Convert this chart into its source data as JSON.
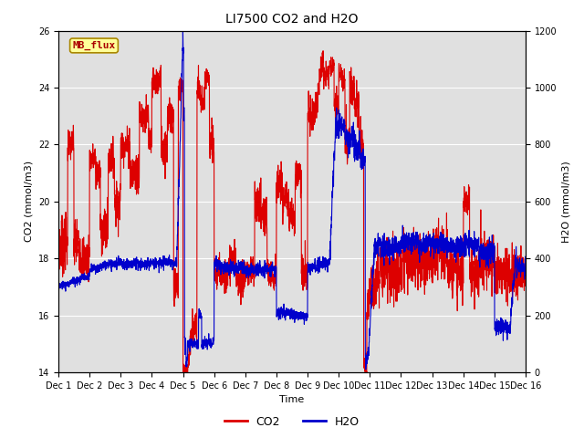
{
  "title": "LI7500 CO2 and H2O",
  "xlabel": "Time",
  "ylabel_left": "CO2 (mmol/m3)",
  "ylabel_right": "H2O (mmol/m3)",
  "ylim_left": [
    14,
    26
  ],
  "ylim_right": [
    0,
    1200
  ],
  "yticks_left": [
    14,
    16,
    18,
    20,
    22,
    24,
    26
  ],
  "yticks_right": [
    0,
    200,
    400,
    600,
    800,
    1000,
    1200
  ],
  "xtick_labels": [
    "Dec 1",
    "Dec 2",
    "Dec 3",
    "Dec 4",
    "Dec 5",
    "Dec 6",
    "Dec 7",
    "Dec 8",
    "Dec 9",
    "Dec 10",
    "Dec 11",
    "Dec 12",
    "Dec 13",
    "Dec 14",
    "Dec 15",
    "Dec 16"
  ],
  "bg_color": "#e0e0e0",
  "watermark_text": "MB_flux",
  "watermark_bg": "#ffff99",
  "watermark_border": "#aa8800",
  "watermark_color": "#aa0000",
  "co2_color": "#dd0000",
  "h2o_color": "#0000cc",
  "legend_co2": "CO2",
  "legend_h2o": "H2O",
  "title_fontsize": 10,
  "axis_fontsize": 8,
  "tick_fontsize": 7,
  "n_points": 3000
}
